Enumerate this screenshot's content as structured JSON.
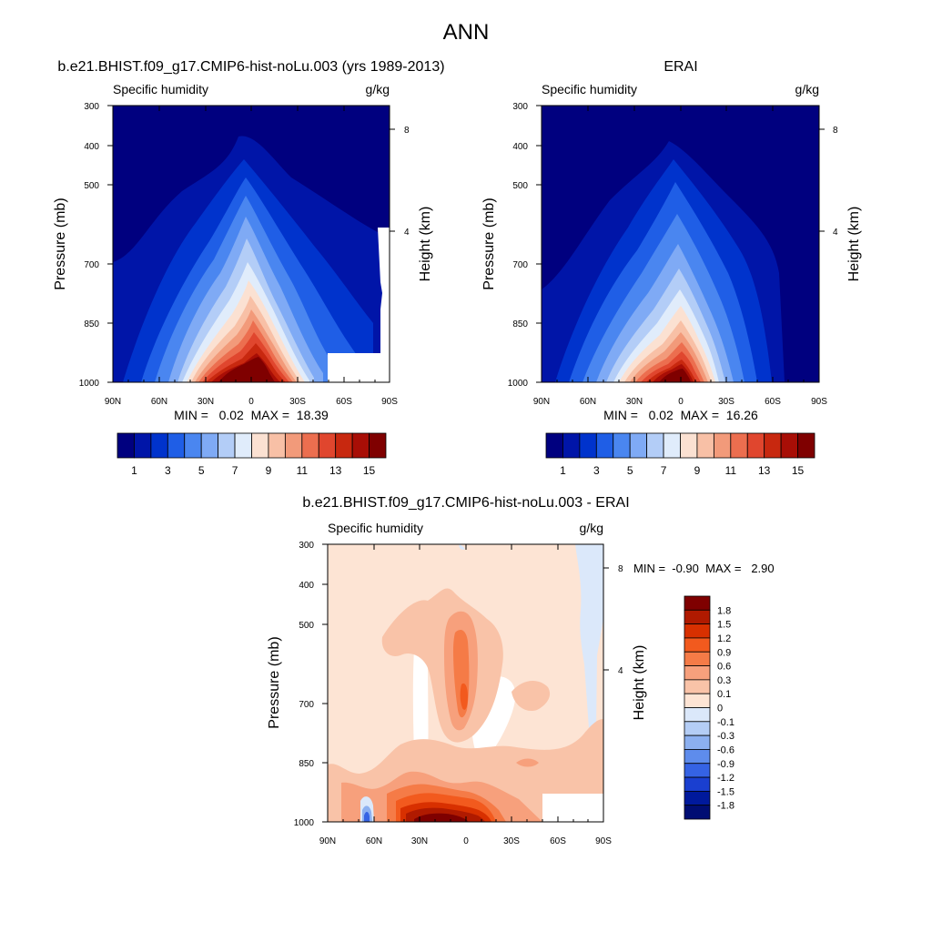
{
  "figure_title": "ANN",
  "chart_data": [
    {
      "type": "contour",
      "title": "b.e21.BHIST.f09_g17.CMIP6-hist-noLu.003 (yrs 1989-2013)",
      "left_label": "Specific humidity",
      "right_label": "g/kg",
      "ylabel": "Pressure (mb)",
      "right_ylabel": "Height (km)",
      "x_ticks": [
        "90N",
        "60N",
        "30N",
        "0",
        "30S",
        "60S",
        "90S"
      ],
      "y_ticks": [
        "300",
        "400",
        "500",
        "700",
        "850",
        "1000"
      ],
      "right_ticks": [
        "8",
        "4"
      ],
      "stats": "MIN =   0.02  MAX =  18.39",
      "colorbar_ticks": [
        "1",
        "3",
        "5",
        "7",
        "9",
        "11",
        "13",
        "15"
      ],
      "colors": [
        "#00007f",
        "#0015a8",
        "#0033cc",
        "#1f5ee6",
        "#4a86f0",
        "#7faaf5",
        "#b3cdf7",
        "#e0ecfb",
        "#fbe1d2",
        "#f8c0a6",
        "#f29a7a",
        "#ec6e4f",
        "#e0462e",
        "#c8280f",
        "#a80e06",
        "#7f0000"
      ]
    },
    {
      "type": "contour",
      "title": "ERAI",
      "left_label": "Specific humidity",
      "right_label": "g/kg",
      "ylabel": "Pressure (mb)",
      "right_ylabel": "Height (km)",
      "x_ticks": [
        "90N",
        "60N",
        "30N",
        "0",
        "30S",
        "60S",
        "90S"
      ],
      "y_ticks": [
        "300",
        "400",
        "500",
        "700",
        "850",
        "1000"
      ],
      "right_ticks": [
        "8",
        "4"
      ],
      "stats": "MIN =   0.02  MAX =  16.26",
      "colorbar_ticks": [
        "1",
        "3",
        "5",
        "7",
        "9",
        "11",
        "13",
        "15"
      ],
      "colors": [
        "#00007f",
        "#0015a8",
        "#0033cc",
        "#1f5ee6",
        "#4a86f0",
        "#7faaf5",
        "#b3cdf7",
        "#e0ecfb",
        "#fbe1d2",
        "#f8c0a6",
        "#f29a7a",
        "#ec6e4f",
        "#e0462e",
        "#c8280f",
        "#a80e06",
        "#7f0000"
      ]
    },
    {
      "type": "contour",
      "title": "b.e21.BHIST.f09_g17.CMIP6-hist-noLu.003 - ERAI",
      "left_label": "Specific humidity",
      "right_label": "g/kg",
      "ylabel": "Pressure (mb)",
      "right_ylabel": "Height (km)",
      "x_ticks": [
        "90N",
        "60N",
        "30N",
        "0",
        "30S",
        "60S",
        "90S"
      ],
      "y_ticks": [
        "300",
        "400",
        "500",
        "700",
        "850",
        "1000"
      ],
      "right_ticks": [
        "8",
        "4"
      ],
      "stats": "MIN =  -0.90  MAX =   2.90",
      "colorbar_ticks": [
        "1.8",
        "1.5",
        "1.2",
        "0.9",
        "0.6",
        "0.3",
        "0.1",
        "0",
        "-0.1",
        "-0.3",
        "-0.6",
        "-0.9",
        "-1.2",
        "-1.5",
        "-1.8"
      ],
      "colors": [
        "#7f0000",
        "#b01a00",
        "#d83000",
        "#f25a1e",
        "#f57b47",
        "#f7a07c",
        "#f9c3a8",
        "#fde4d4",
        "#dbe8fa",
        "#b4cdf5",
        "#8cb0f0",
        "#5e8cec",
        "#3563e4",
        "#1a3fd0",
        "#00199c",
        "#000d73"
      ]
    }
  ]
}
